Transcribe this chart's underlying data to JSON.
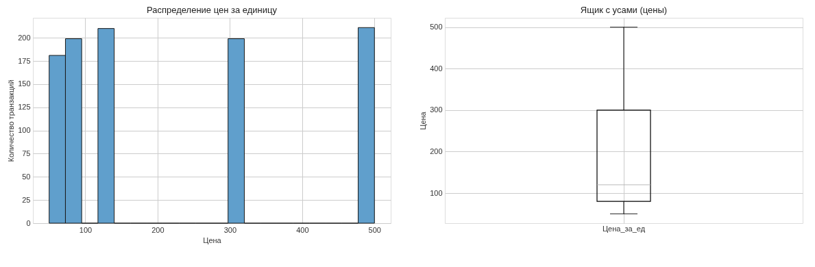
{
  "chart_data": [
    {
      "type": "histogram",
      "title": "Распределение цен за единицу",
      "xlabel": "Цена",
      "ylabel": "Количество транзакций",
      "bins": [
        50,
        72.5,
        95,
        117.5,
        140,
        162.5,
        185,
        207.5,
        230,
        252.5,
        275,
        297.5,
        320,
        342.5,
        365,
        387.5,
        410,
        432.5,
        455,
        477.5,
        500
      ],
      "values": [
        181,
        199,
        0,
        210,
        0,
        0,
        0,
        0,
        0,
        0,
        0,
        199,
        0,
        0,
        0,
        0,
        0,
        0,
        0,
        211
      ],
      "color": "#609fcc",
      "xlim": [
        27.5,
        522.5
      ],
      "xticks": [
        100,
        200,
        300,
        400,
        500
      ],
      "ylim": [
        0,
        221.55
      ],
      "yticks": [
        0,
        25,
        50,
        75,
        100,
        125,
        150,
        175,
        200
      ],
      "grid": true
    },
    {
      "type": "box",
      "title": "Ящик с усами (цены)",
      "ylabel": "Цена",
      "categories": [
        "Цена_за_ед"
      ],
      "boxes": [
        {
          "low": 50,
          "q1": 80,
          "median": 120,
          "q3": 300,
          "high": 500
        }
      ],
      "ylim": [
        27.5,
        522.5
      ],
      "yticks": [
        100,
        200,
        300,
        400,
        500
      ],
      "grid": true
    }
  ]
}
